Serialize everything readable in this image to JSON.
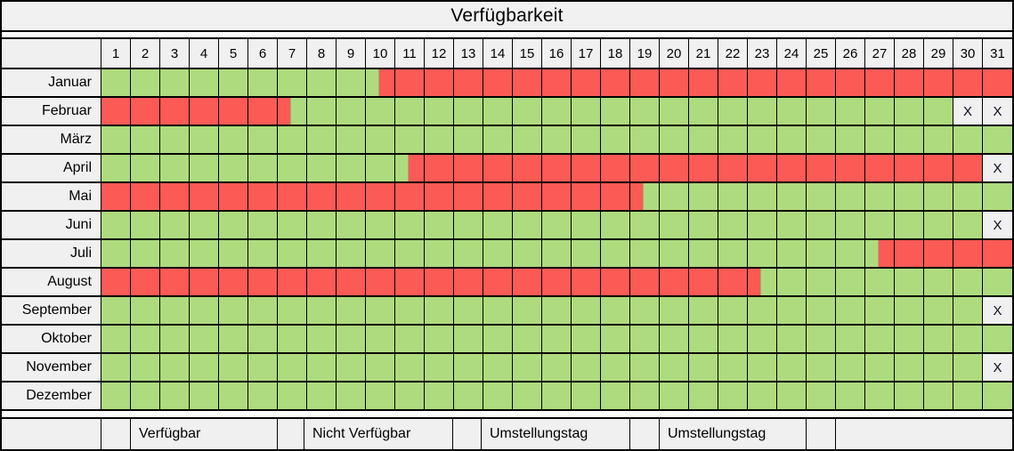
{
  "title": "Verfügbarkeit",
  "x_marker": "X",
  "colors": {
    "available_green": "#aedb7e",
    "unavailable_red": "#fc5a55",
    "cell_bg_gray": "#f0f0f0",
    "grid_black": "#000000"
  },
  "chart_data": {
    "type": "heatmap",
    "title": "Verfügbarkeit",
    "x_labels": [
      1,
      2,
      3,
      4,
      5,
      6,
      7,
      8,
      9,
      10,
      11,
      12,
      13,
      14,
      15,
      16,
      17,
      18,
      19,
      20,
      21,
      22,
      23,
      24,
      25,
      26,
      27,
      28,
      29,
      30,
      31
    ],
    "state_codes": {
      "A": "Verfügbar",
      "N": "Nicht Verfügbar",
      "AN": "Umstellungstag",
      "NA": "Umstellungstag",
      "X": "X"
    },
    "legend_position": "bottom",
    "legend": [
      {
        "state": "A",
        "label": "Verfügbar"
      },
      {
        "state": "N",
        "label": "Nicht Verfügbar"
      },
      {
        "state": "AN",
        "label": "Umstellungstag"
      },
      {
        "state": "NA",
        "label": "Umstellungstag"
      }
    ],
    "rows": [
      {
        "month": "Januar",
        "days": [
          "A",
          "A",
          "A",
          "A",
          "A",
          "A",
          "A",
          "A",
          "A",
          "AN",
          "N",
          "N",
          "N",
          "N",
          "N",
          "N",
          "N",
          "N",
          "N",
          "N",
          "N",
          "N",
          "N",
          "N",
          "N",
          "N",
          "N",
          "N",
          "N",
          "N",
          "N"
        ]
      },
      {
        "month": "Februar",
        "days": [
          "N",
          "N",
          "N",
          "N",
          "N",
          "N",
          "NA",
          "A",
          "A",
          "A",
          "A",
          "A",
          "A",
          "A",
          "A",
          "A",
          "A",
          "A",
          "A",
          "A",
          "A",
          "A",
          "A",
          "A",
          "A",
          "A",
          "A",
          "A",
          "A",
          "X",
          "X"
        ]
      },
      {
        "month": "März",
        "days": [
          "A",
          "A",
          "A",
          "A",
          "A",
          "A",
          "A",
          "A",
          "A",
          "A",
          "A",
          "A",
          "A",
          "A",
          "A",
          "A",
          "A",
          "A",
          "A",
          "A",
          "A",
          "A",
          "A",
          "A",
          "A",
          "A",
          "A",
          "A",
          "A",
          "A",
          "A"
        ]
      },
      {
        "month": "April",
        "days": [
          "A",
          "A",
          "A",
          "A",
          "A",
          "A",
          "A",
          "A",
          "A",
          "A",
          "AN",
          "N",
          "N",
          "N",
          "N",
          "N",
          "N",
          "N",
          "N",
          "N",
          "N",
          "N",
          "N",
          "N",
          "N",
          "N",
          "N",
          "N",
          "N",
          "N",
          "X"
        ]
      },
      {
        "month": "Mai",
        "days": [
          "N",
          "N",
          "N",
          "N",
          "N",
          "N",
          "N",
          "N",
          "N",
          "N",
          "N",
          "N",
          "N",
          "N",
          "N",
          "N",
          "N",
          "N",
          "NA",
          "A",
          "A",
          "A",
          "A",
          "A",
          "A",
          "A",
          "A",
          "A",
          "A",
          "A",
          "A"
        ]
      },
      {
        "month": "Juni",
        "days": [
          "A",
          "A",
          "A",
          "A",
          "A",
          "A",
          "A",
          "A",
          "A",
          "A",
          "A",
          "A",
          "A",
          "A",
          "A",
          "A",
          "A",
          "A",
          "A",
          "A",
          "A",
          "A",
          "A",
          "A",
          "A",
          "A",
          "A",
          "A",
          "A",
          "A",
          "X"
        ]
      },
      {
        "month": "Juli",
        "days": [
          "A",
          "A",
          "A",
          "A",
          "A",
          "A",
          "A",
          "A",
          "A",
          "A",
          "A",
          "A",
          "A",
          "A",
          "A",
          "A",
          "A",
          "A",
          "A",
          "A",
          "A",
          "A",
          "A",
          "A",
          "A",
          "A",
          "AN",
          "N",
          "N",
          "N",
          "N"
        ]
      },
      {
        "month": "August",
        "days": [
          "N",
          "N",
          "N",
          "N",
          "N",
          "N",
          "N",
          "N",
          "N",
          "N",
          "N",
          "N",
          "N",
          "N",
          "N",
          "N",
          "N",
          "N",
          "N",
          "N",
          "N",
          "N",
          "NA",
          "A",
          "A",
          "A",
          "A",
          "A",
          "A",
          "A",
          "A"
        ]
      },
      {
        "month": "September",
        "days": [
          "A",
          "A",
          "A",
          "A",
          "A",
          "A",
          "A",
          "A",
          "A",
          "A",
          "A",
          "A",
          "A",
          "A",
          "A",
          "A",
          "A",
          "A",
          "A",
          "A",
          "A",
          "A",
          "A",
          "A",
          "A",
          "A",
          "A",
          "A",
          "A",
          "A",
          "X"
        ]
      },
      {
        "month": "Oktober",
        "days": [
          "A",
          "A",
          "A",
          "A",
          "A",
          "A",
          "A",
          "A",
          "A",
          "A",
          "A",
          "A",
          "A",
          "A",
          "A",
          "A",
          "A",
          "A",
          "A",
          "A",
          "A",
          "A",
          "A",
          "A",
          "A",
          "A",
          "A",
          "A",
          "A",
          "A",
          "A"
        ]
      },
      {
        "month": "November",
        "days": [
          "A",
          "A",
          "A",
          "A",
          "A",
          "A",
          "A",
          "A",
          "A",
          "A",
          "A",
          "A",
          "A",
          "A",
          "A",
          "A",
          "A",
          "A",
          "A",
          "A",
          "A",
          "A",
          "A",
          "A",
          "A",
          "A",
          "A",
          "A",
          "A",
          "A",
          "X"
        ]
      },
      {
        "month": "Dezember",
        "days": [
          "A",
          "A",
          "A",
          "A",
          "A",
          "A",
          "A",
          "A",
          "A",
          "A",
          "A",
          "A",
          "A",
          "A",
          "A",
          "A",
          "A",
          "A",
          "A",
          "A",
          "A",
          "A",
          "A",
          "A",
          "A",
          "A",
          "A",
          "A",
          "A",
          "A",
          "A"
        ]
      }
    ]
  }
}
